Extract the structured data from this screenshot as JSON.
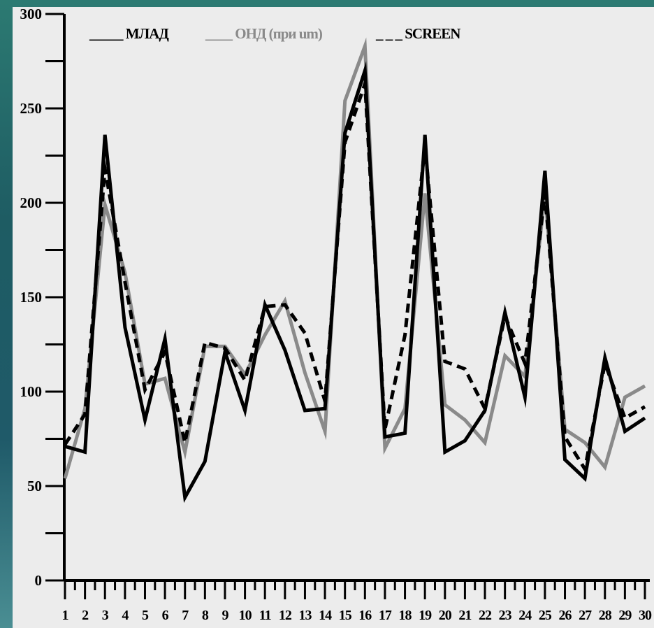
{
  "chart_data": {
    "type": "line",
    "x": [
      1,
      2,
      3,
      4,
      5,
      6,
      7,
      8,
      9,
      10,
      11,
      12,
      13,
      14,
      15,
      16,
      17,
      18,
      19,
      20,
      21,
      22,
      23,
      24,
      25,
      26,
      27,
      28,
      29,
      30
    ],
    "ylim": [
      0,
      300
    ],
    "yticks": [
      0,
      50,
      100,
      150,
      200,
      250,
      300
    ],
    "grid": false,
    "legend_position": "top",
    "series": [
      {
        "name": "МЛАД",
        "legend_label": "_____ МЛАД",
        "color": "#000000",
        "style": "solid",
        "values": [
          71,
          68,
          236,
          134,
          85,
          128,
          44,
          63,
          121,
          90,
          146,
          122,
          90,
          91,
          237,
          270,
          76,
          78,
          236,
          68,
          74,
          90,
          142,
          97,
          217,
          64,
          54,
          118,
          79,
          86
        ]
      },
      {
        "name": "ОНД (при um)",
        "legend_label": "____ ОНД (при um)",
        "color": "#8a8a8a",
        "style": "solid",
        "values": [
          54,
          91,
          199,
          163,
          104,
          107,
          68,
          124,
          124,
          109,
          130,
          148,
          110,
          79,
          254,
          283,
          70,
          91,
          205,
          93,
          85,
          73,
          119,
          108,
          205,
          80,
          73,
          60,
          97,
          103
        ]
      },
      {
        "name": "SCREEN",
        "legend_label": "_ _ _ SCREEN",
        "color": "#000000",
        "style": "dashed",
        "values": [
          72,
          88,
          218,
          158,
          101,
          121,
          73,
          126,
          123,
          106,
          145,
          146,
          131,
          95,
          232,
          263,
          80,
          130,
          230,
          116,
          112,
          91,
          140,
          115,
          205,
          76,
          59,
          115,
          86,
          92
        ]
      }
    ]
  }
}
